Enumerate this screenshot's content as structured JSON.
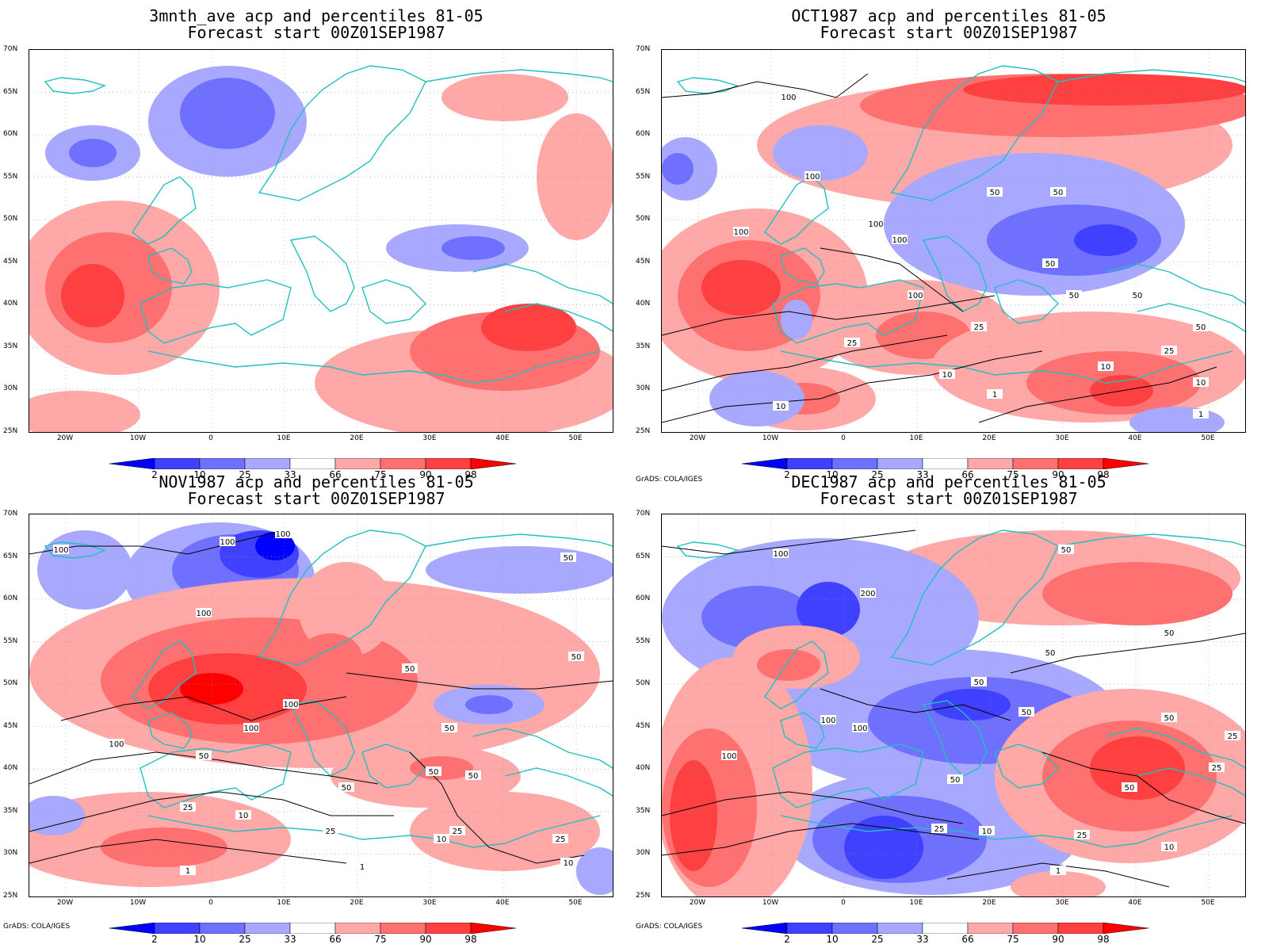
{
  "panels": [
    {
      "title1": "3mnth_ave acp and percentiles 81-05",
      "title2": "Forecast start 00Z01SEP1987",
      "credit": "",
      "contour_labels": []
    },
    {
      "title1": "OCT1987 acp and percentiles 81-05",
      "title2": "Forecast start 00Z01SEP1987",
      "credit": "GrADS: COLA/IGES",
      "contour_labels": [
        "100",
        "100",
        "100",
        "100",
        "100",
        "100",
        "50",
        "50",
        "50",
        "50",
        "50",
        "50",
        "25",
        "25",
        "25",
        "10",
        "10",
        "10",
        "10",
        "1",
        "1"
      ]
    },
    {
      "title1": "NOV1987 acp and percentiles 81-05",
      "title2": "Forecast start 00Z01SEP1987",
      "credit": "GrADS: COLA/IGES",
      "contour_labels": [
        "100",
        "100",
        "100",
        "100",
        "100",
        "100",
        "100",
        "50",
        "50",
        "50",
        "50",
        "50",
        "50",
        "50",
        "50",
        "25",
        "25",
        "25",
        "25",
        "10",
        "10",
        "10",
        "1",
        "1"
      ]
    },
    {
      "title1": "DEC1987 acp and percentiles 81-05",
      "title2": "Forecast start 00Z01SEP1987",
      "credit": "GrADS: COLA/IGES",
      "contour_labels": [
        "100",
        "200",
        "100",
        "100",
        "100",
        "50",
        "50",
        "50",
        "50",
        "50",
        "50",
        "50",
        "50",
        "25",
        "25",
        "25",
        "25",
        "10",
        "10",
        "1"
      ]
    }
  ],
  "axes": {
    "y_ticks": [
      "70N",
      "65N",
      "60N",
      "55N",
      "50N",
      "45N",
      "40N",
      "35N",
      "30N",
      "25N"
    ],
    "x_ticks": [
      "20W",
      "10W",
      "0",
      "10E",
      "20E",
      "30E",
      "40E",
      "50E"
    ]
  },
  "colorbar": {
    "labels": [
      "2",
      "10",
      "25",
      "33",
      "66",
      "75",
      "90",
      "98"
    ],
    "colors": [
      "#0000ff",
      "#4040ff",
      "#7070ff",
      "#a8a8ff",
      "#ffffff",
      "#ffa8a8",
      "#ff7070",
      "#ff4040",
      "#ff0000"
    ]
  },
  "colors": {
    "coastline": "#20c0c0",
    "contour": "#000000"
  }
}
